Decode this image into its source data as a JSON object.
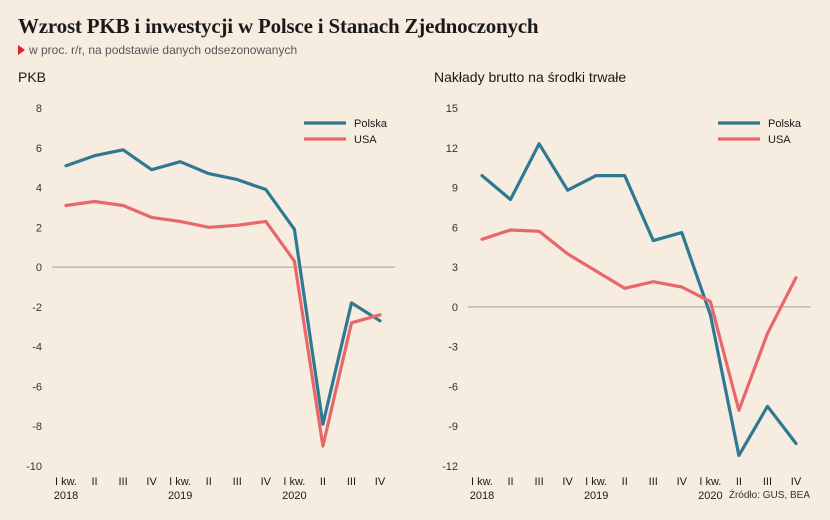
{
  "header": {
    "title": "Wzrost PKB i inwestycji w Polsce i Stanach Zjednoczonych",
    "subtitle": "w proc. r/r, na podstawie danych odsezonowanych"
  },
  "source": "Źródło: GUS, BEA",
  "colors": {
    "polska": "#2f7a92",
    "usa": "#e8676a",
    "zero_line": "#a99f98"
  },
  "chart_data": [
    {
      "type": "line",
      "title": "PKB",
      "ylim": [
        -10,
        8
      ],
      "yticks": [
        8,
        6,
        4,
        2,
        0,
        -2,
        -4,
        -6,
        -8,
        -10
      ],
      "grid": false,
      "legend": "top-right",
      "categories": [
        "I kw.",
        "II",
        "III",
        "IV",
        "I kw.",
        "II",
        "III",
        "IV",
        "I kw.",
        "II",
        "III",
        "IV"
      ],
      "years": [
        {
          "label": "2018",
          "index": 0
        },
        {
          "label": "2019",
          "index": 4
        },
        {
          "label": "2020",
          "index": 8
        }
      ],
      "series": [
        {
          "name": "Polska",
          "values": [
            5.1,
            5.6,
            5.9,
            4.9,
            5.3,
            4.7,
            4.4,
            3.9,
            1.9,
            -7.9,
            -1.8,
            -2.7
          ]
        },
        {
          "name": "USA",
          "values": [
            3.1,
            3.3,
            3.1,
            2.5,
            2.3,
            2.0,
            2.1,
            2.3,
            0.3,
            -9.0,
            -2.8,
            -2.4
          ]
        }
      ]
    },
    {
      "type": "line",
      "title": "Nakłady brutto na środki trwałe",
      "ylim": [
        -12,
        15
      ],
      "yticks": [
        15,
        12,
        9,
        6,
        3,
        0,
        -3,
        -6,
        -9,
        -12
      ],
      "grid": false,
      "legend": "top-right",
      "categories": [
        "I kw.",
        "II",
        "III",
        "IV",
        "I kw.",
        "II",
        "III",
        "IV",
        "I kw.",
        "II",
        "III",
        "IV"
      ],
      "years": [
        {
          "label": "2018",
          "index": 0
        },
        {
          "label": "2019",
          "index": 4
        },
        {
          "label": "2020",
          "index": 8
        }
      ],
      "series": [
        {
          "name": "Polska",
          "values": [
            9.9,
            8.1,
            12.3,
            8.8,
            9.9,
            9.9,
            5.0,
            5.6,
            -0.6,
            -11.2,
            -7.5,
            -10.3
          ]
        },
        {
          "name": "USA",
          "values": [
            5.1,
            5.8,
            5.7,
            4.0,
            2.7,
            1.4,
            1.9,
            1.5,
            0.4,
            -7.8,
            -2.0,
            2.2
          ]
        }
      ]
    }
  ]
}
